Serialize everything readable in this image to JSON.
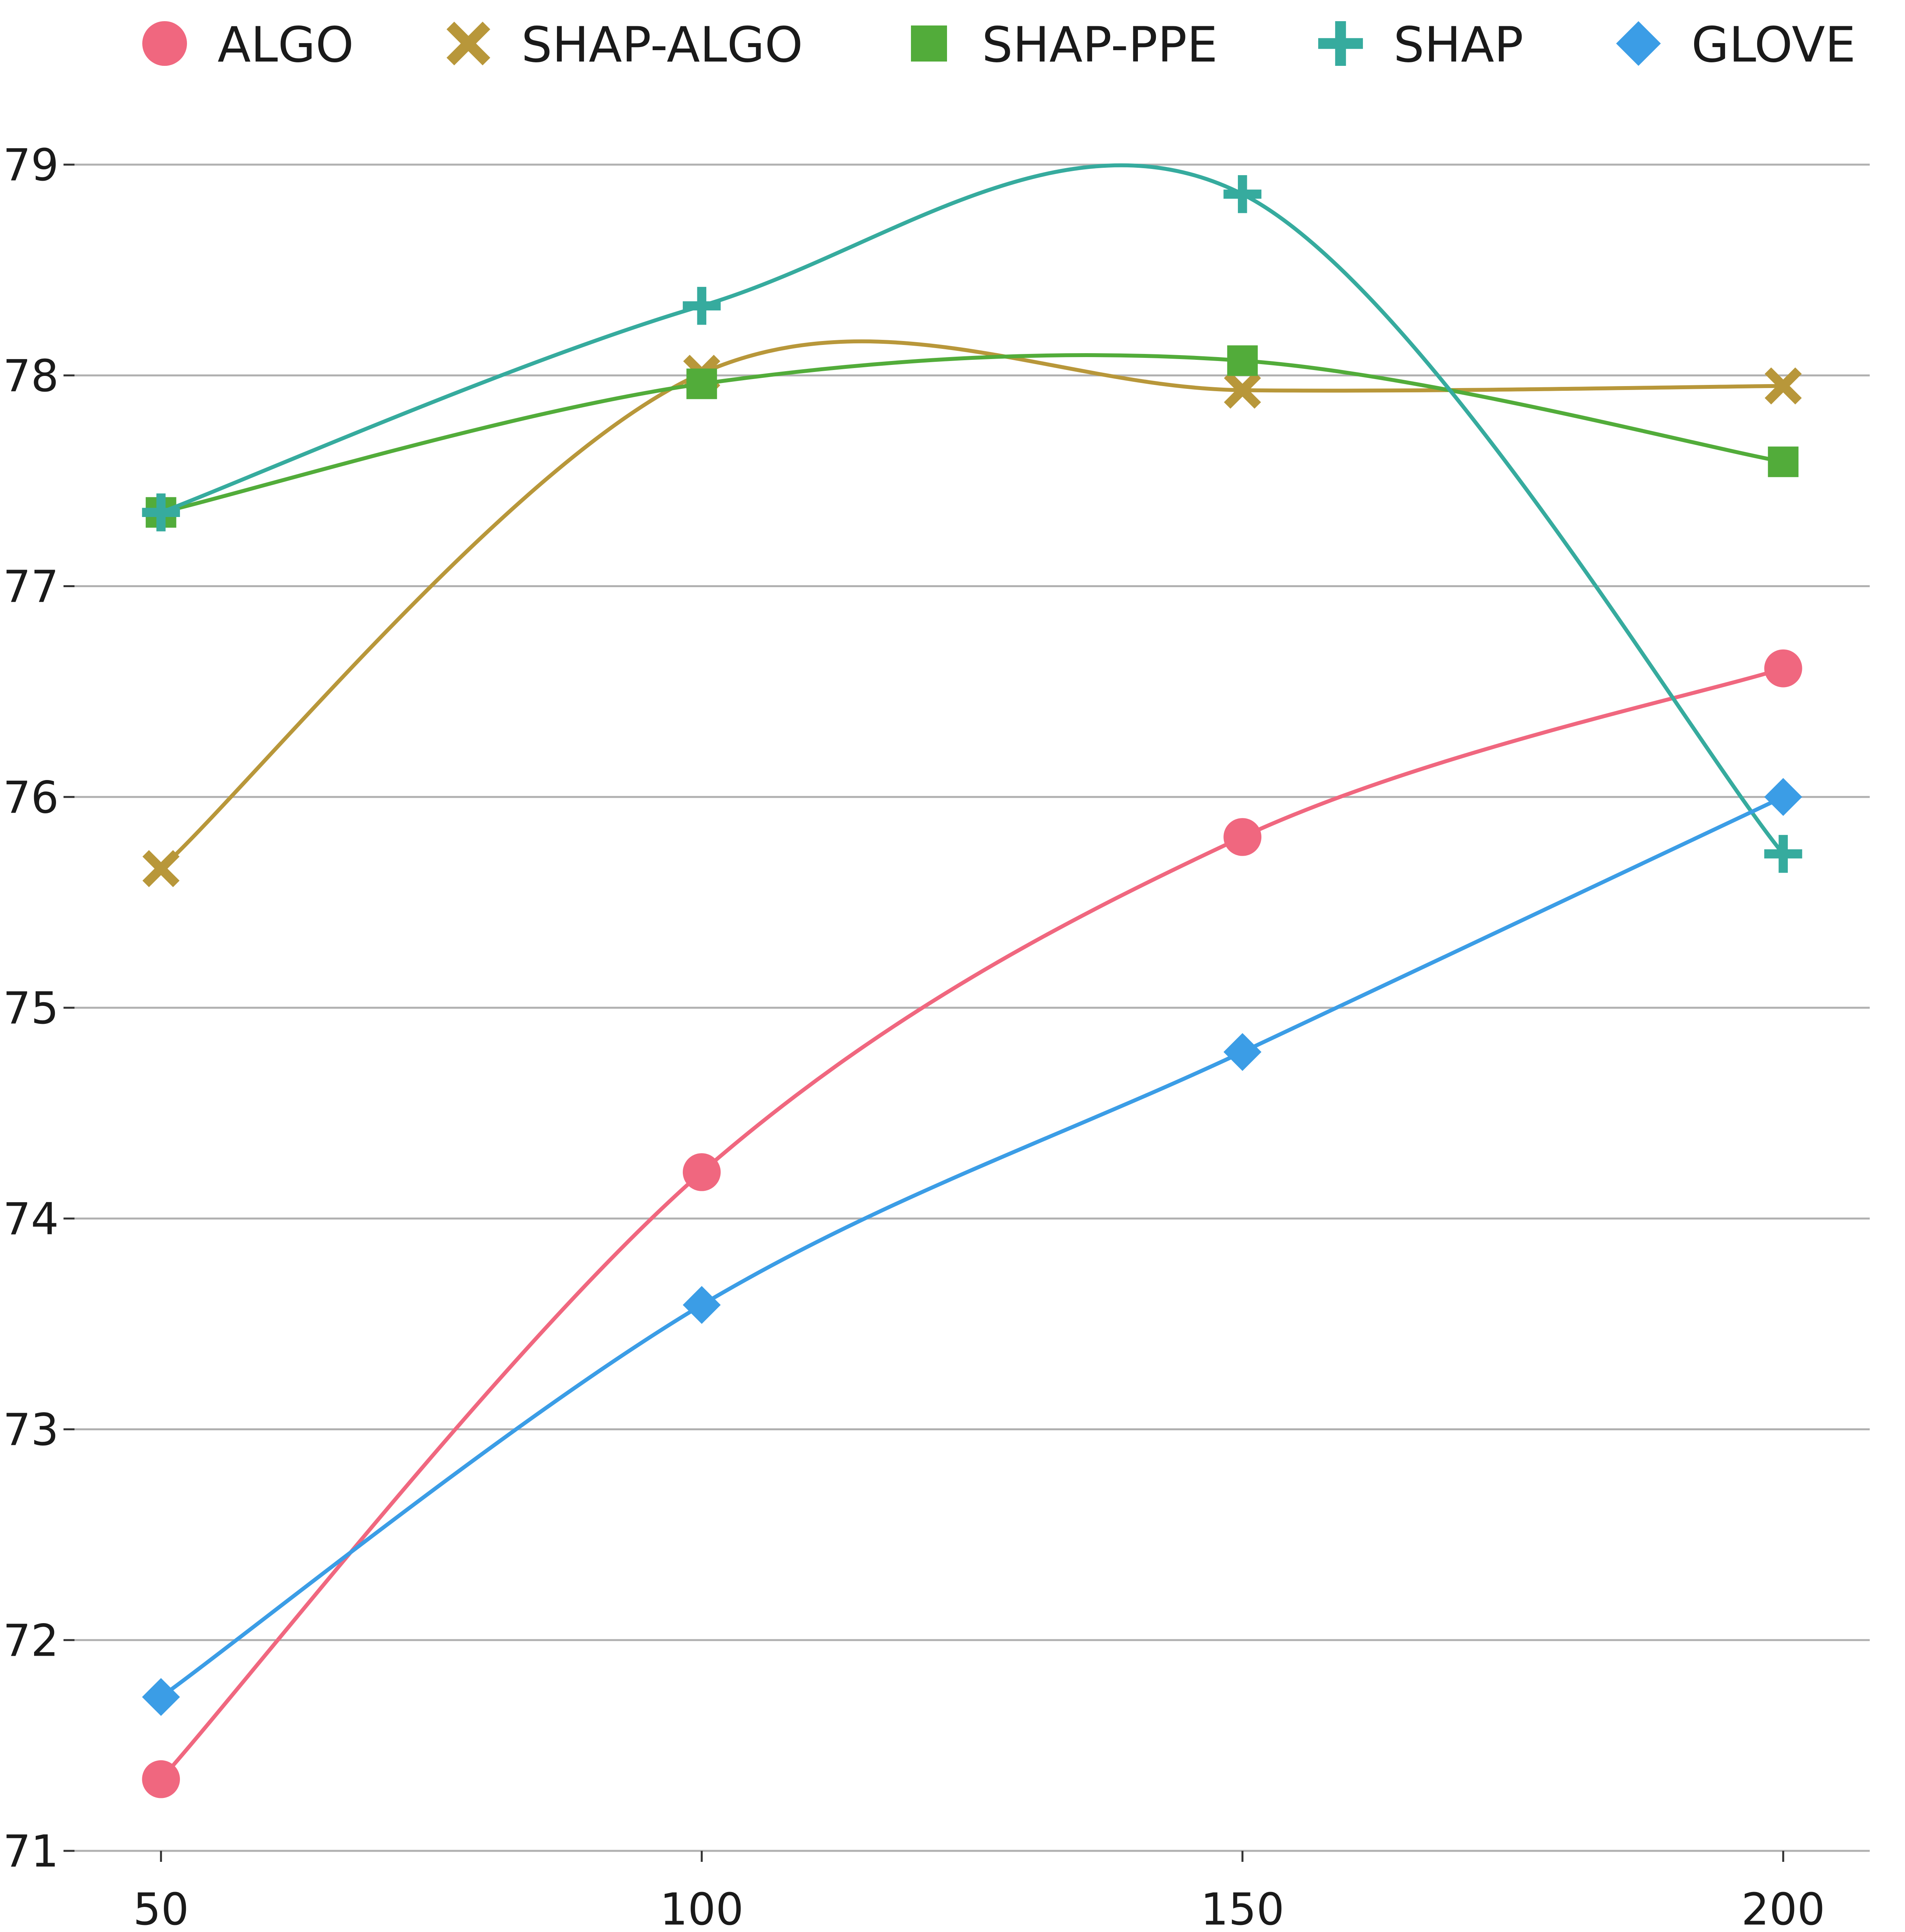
{
  "chart_data": {
    "type": "line",
    "title": "",
    "xlabel": "",
    "ylabel": "",
    "x": [
      50,
      100,
      150,
      200
    ],
    "x_ticks": [
      "50",
      "100",
      "150",
      "200"
    ],
    "y_ticks": [
      "71",
      "72",
      "73",
      "74",
      "75",
      "76",
      "77",
      "78",
      "79"
    ],
    "xlim": [
      42,
      208
    ],
    "ylim": [
      71,
      79.8
    ],
    "grid": "horizontal",
    "legend_position": "top",
    "smoothed": true,
    "series": [
      {
        "name": "ALGO",
        "marker": "circle",
        "color": "#f0677f",
        "values": [
          71.34,
          74.22,
          75.81,
          76.61
        ]
      },
      {
        "name": "SHAP-ALGO",
        "marker": "x",
        "color": "#b8973a",
        "values": [
          75.66,
          78.01,
          77.93,
          77.95
        ]
      },
      {
        "name": "SHAP-PPE",
        "marker": "square",
        "color": "#52ac3a",
        "values": [
          77.35,
          77.96,
          78.07,
          77.59
        ]
      },
      {
        "name": "SHAP",
        "marker": "plus",
        "color": "#36ab9e",
        "values": [
          77.35,
          78.33,
          78.86,
          75.73
        ]
      },
      {
        "name": "GLOVE",
        "marker": "diamond",
        "color": "#3b9de6",
        "values": [
          71.73,
          73.59,
          74.79,
          76.0
        ]
      }
    ]
  }
}
